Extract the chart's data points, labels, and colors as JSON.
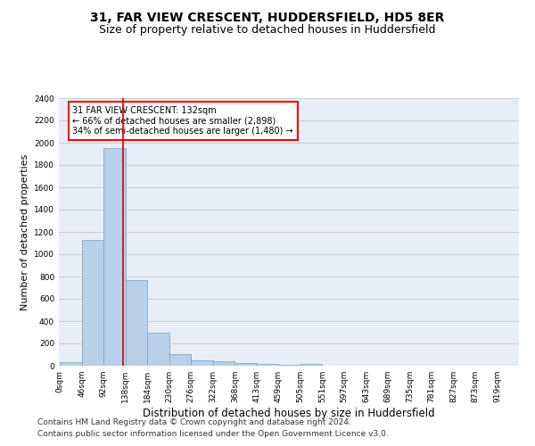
{
  "title1": "31, FAR VIEW CRESCENT, HUDDERSFIELD, HD5 8ER",
  "title2": "Size of property relative to detached houses in Huddersfield",
  "xlabel": "Distribution of detached houses by size in Huddersfield",
  "ylabel": "Number of detached properties",
  "footnote1": "Contains HM Land Registry data © Crown copyright and database right 2024.",
  "footnote2": "Contains public sector information licensed under the Open Government Licence v3.0.",
  "bin_labels": [
    "0sqm",
    "46sqm",
    "92sqm",
    "138sqm",
    "184sqm",
    "230sqm",
    "276sqm",
    "322sqm",
    "368sqm",
    "413sqm",
    "459sqm",
    "505sqm",
    "551sqm",
    "597sqm",
    "643sqm",
    "689sqm",
    "735sqm",
    "781sqm",
    "827sqm",
    "873sqm",
    "919sqm"
  ],
  "bar_heights": [
    35,
    1130,
    1950,
    770,
    300,
    105,
    45,
    40,
    25,
    15,
    10,
    15,
    0,
    0,
    0,
    0,
    0,
    0,
    0,
    0,
    0
  ],
  "bar_color": "#b8d0e8",
  "bar_edge_color": "#6fa0c8",
  "bar_edge_width": 0.5,
  "property_line_x": 132,
  "bin_width": 46,
  "annotation_line1": "31 FAR VIEW CRESCENT: 132sqm",
  "annotation_line2": "← 66% of detached houses are smaller (2,898)",
  "annotation_line3": "34% of semi-detached houses are larger (1,480) →",
  "annotation_box_color": "red",
  "annotation_text_fontsize": 7.0,
  "ylim": [
    0,
    2400
  ],
  "yticks": [
    0,
    200,
    400,
    600,
    800,
    1000,
    1200,
    1400,
    1600,
    1800,
    2000,
    2200,
    2400
  ],
  "grid_color": "#cccccc",
  "background_color": "#e8eef6",
  "title1_fontsize": 10,
  "title2_fontsize": 9,
  "xlabel_fontsize": 8.5,
  "ylabel_fontsize": 8,
  "footnote_fontsize": 6.5,
  "tick_fontsize": 6.5
}
